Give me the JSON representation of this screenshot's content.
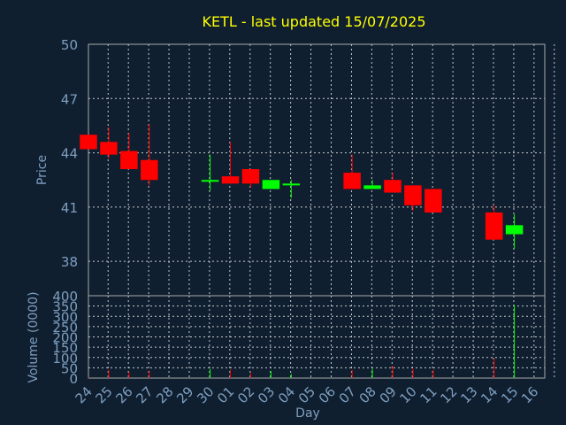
{
  "chart_data": [
    {
      "type": "candlestick",
      "title": "KETL - last updated 15/07/2025",
      "ylabel": "Price",
      "ylim": [
        36.1,
        50
      ],
      "yticks": [
        38,
        41,
        44,
        47,
        50
      ],
      "grid": true,
      "colors": {
        "up": "#00ff00",
        "down": "#ff0000",
        "background": "#0f1f30",
        "text": "#7f9fbf",
        "title": "#ffff00"
      },
      "candles": [
        {
          "day": "24",
          "open": 45.0,
          "close": 44.2,
          "high": 45.0,
          "low": 44.2
        },
        {
          "day": "25",
          "open": 44.6,
          "close": 43.9,
          "high": 45.4,
          "low": 43.7
        },
        {
          "day": "26",
          "open": 44.1,
          "close": 43.1,
          "high": 45.1,
          "low": 43.1
        },
        {
          "day": "27",
          "open": 43.6,
          "close": 42.5,
          "high": 45.6,
          "low": 42.2
        },
        {
          "day": "30",
          "open": 42.4,
          "close": 42.5,
          "high": 43.9,
          "low": 41.9
        },
        {
          "day": "01",
          "open": 42.7,
          "close": 42.3,
          "high": 44.6,
          "low": 42.3
        },
        {
          "day": "02",
          "open": 43.1,
          "close": 42.3,
          "high": 43.1,
          "low": 42.1
        },
        {
          "day": "03",
          "open": 42.0,
          "close": 42.5,
          "high": 42.5,
          "low": 42.0
        },
        {
          "day": "04",
          "open": 42.2,
          "close": 42.3,
          "high": 42.5,
          "low": 41.5
        },
        {
          "day": "07",
          "open": 42.9,
          "close": 42.0,
          "high": 43.9,
          "low": 42.0
        },
        {
          "day": "08",
          "open": 42.0,
          "close": 42.2,
          "high": 42.5,
          "low": 42.0
        },
        {
          "day": "09",
          "open": 42.5,
          "close": 41.8,
          "high": 42.9,
          "low": 41.8
        },
        {
          "day": "10",
          "open": 42.2,
          "close": 41.1,
          "high": 42.2,
          "low": 40.8
        },
        {
          "day": "11",
          "open": 42.0,
          "close": 40.7,
          "high": 42.0,
          "low": 40.7
        },
        {
          "day": "14",
          "open": 40.7,
          "close": 39.2,
          "high": 41.1,
          "low": 39.2
        },
        {
          "day": "15",
          "open": 39.5,
          "close": 40.0,
          "high": 40.6,
          "low": 38.7
        }
      ]
    },
    {
      "type": "bar",
      "ylabel": "Volume (0000)",
      "xlabel": "Day",
      "ylim": [
        0,
        400
      ],
      "yticks": [
        0,
        50,
        100,
        150,
        200,
        250,
        300,
        350,
        400
      ],
      "x_tick_labels": [
        "24",
        "25",
        "26",
        "27",
        "28",
        "29",
        "30",
        "01",
        "02",
        "03",
        "04",
        "05",
        "06",
        "07",
        "08",
        "09",
        "10",
        "11",
        "12",
        "13",
        "14",
        "15",
        "16"
      ],
      "volumes": [
        {
          "day": "24",
          "value": 3,
          "direction": "down"
        },
        {
          "day": "25",
          "value": 40,
          "direction": "down"
        },
        {
          "day": "26",
          "value": 30,
          "direction": "down"
        },
        {
          "day": "27",
          "value": 35,
          "direction": "down"
        },
        {
          "day": "30",
          "value": 45,
          "direction": "up"
        },
        {
          "day": "01",
          "value": 40,
          "direction": "down"
        },
        {
          "day": "02",
          "value": 25,
          "direction": "down"
        },
        {
          "day": "03",
          "value": 35,
          "direction": "up"
        },
        {
          "day": "04",
          "value": 20,
          "direction": "up"
        },
        {
          "day": "07",
          "value": 40,
          "direction": "down"
        },
        {
          "day": "08",
          "value": 45,
          "direction": "up"
        },
        {
          "day": "09",
          "value": 60,
          "direction": "down"
        },
        {
          "day": "10",
          "value": 45,
          "direction": "down"
        },
        {
          "day": "11",
          "value": 40,
          "direction": "down"
        },
        {
          "day": "14",
          "value": 95,
          "direction": "down"
        },
        {
          "day": "15",
          "value": 355,
          "direction": "up"
        }
      ]
    }
  ]
}
